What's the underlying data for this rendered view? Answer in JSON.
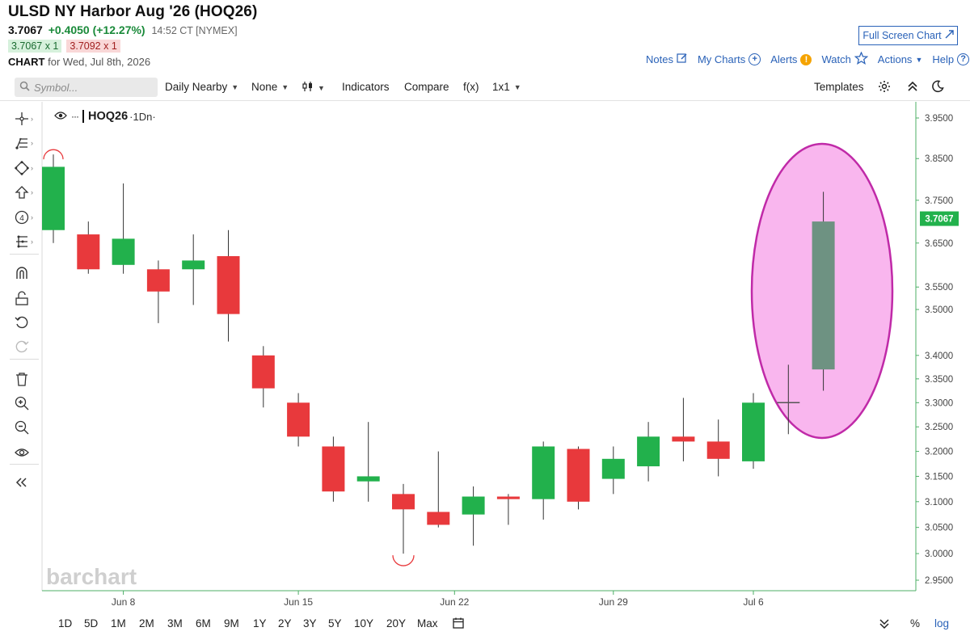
{
  "header": {
    "title": "ULSD NY Harbor Aug '26 (HOQ26)",
    "last": "3.7067",
    "change": "+0.4050 (+12.27%)",
    "time": "14:52 CT [NYMEX]",
    "bid": "3.7067 x 1",
    "ask": "3.7092 x 1",
    "chart_label": "CHART",
    "chart_date": "for Wed, Jul 8th, 2026"
  },
  "links": {
    "fullscreen": "Full Screen Chart",
    "notes": "Notes",
    "my_charts": "My Charts",
    "alerts": "Alerts",
    "watch": "Watch",
    "actions": "Actions",
    "help": "Help"
  },
  "toolbar": {
    "search_placeholder": "Symbol...",
    "aggregation": "Daily Nearby",
    "study": "None",
    "indicators": "Indicators",
    "compare": "Compare",
    "fx": "f(x)",
    "layout": "1x1",
    "templates": "Templates"
  },
  "sidebar_icons": [
    "crosshair-icon",
    "trend-line-icon",
    "shapes-icon",
    "arrow-up-icon",
    "count-icon",
    "fork-icon",
    "magnet-icon",
    "unlock-icon",
    "undo-icon",
    "redo-icon",
    "trash-icon",
    "zoom-in-icon",
    "zoom-out-icon",
    "eye-icon",
    "collapse-icon"
  ],
  "legend": {
    "symbol": "HOQ26",
    "suffix": "·1Dn·"
  },
  "watermark": "barchart",
  "periods": [
    "1D",
    "5D",
    "1M",
    "2M",
    "3M",
    "6M",
    "9M",
    "1Y",
    "2Y",
    "3Y",
    "5Y",
    "10Y",
    "20Y",
    "Max"
  ],
  "bottom": {
    "pct": "%",
    "log": "log"
  },
  "colors": {
    "up": "#22b14c",
    "down": "#e8393c",
    "accent": "#2a62b8",
    "highlight_fill": "#f9b6ee",
    "highlight_stroke": "#c02aa8",
    "highlight_candle": "#6e9282"
  },
  "chart_data": {
    "type": "candlestick",
    "scale": "log",
    "ylim": [
      2.93,
      3.98
    ],
    "y_ticks": [
      "3.9500",
      "3.8500",
      "3.7500",
      "3.6500",
      "3.5500",
      "3.5000",
      "3.4000",
      "3.3500",
      "3.3000",
      "3.2500",
      "3.2000",
      "3.1500",
      "3.1000",
      "3.0500",
      "3.0000",
      "2.9500"
    ],
    "last_price_label": "3.7067",
    "x_ticks": [
      {
        "label": "Jun 8",
        "index": 2
      },
      {
        "label": "Jun 15",
        "index": 7
      },
      {
        "label": "Jun 22",
        "index": 11
      },
      {
        "label": "Jun 29",
        "index": 16
      },
      {
        "label": "Jul 6",
        "index": 20
      }
    ],
    "candles": [
      {
        "o": 3.68,
        "h": 3.86,
        "l": 3.65,
        "c": 3.83
      },
      {
        "o": 3.67,
        "h": 3.7,
        "l": 3.58,
        "c": 3.59
      },
      {
        "o": 3.6,
        "h": 3.79,
        "l": 3.58,
        "c": 3.66
      },
      {
        "o": 3.59,
        "h": 3.61,
        "l": 3.47,
        "c": 3.54
      },
      {
        "o": 3.59,
        "h": 3.67,
        "l": 3.51,
        "c": 3.61
      },
      {
        "o": 3.62,
        "h": 3.68,
        "l": 3.43,
        "c": 3.49
      },
      {
        "o": 3.4,
        "h": 3.42,
        "l": 3.29,
        "c": 3.33
      },
      {
        "o": 3.3,
        "h": 3.32,
        "l": 3.21,
        "c": 3.23
      },
      {
        "o": 3.21,
        "h": 3.23,
        "l": 3.1,
        "c": 3.12
      },
      {
        "o": 3.14,
        "h": 3.26,
        "l": 3.1,
        "c": 3.15
      },
      {
        "o": 3.115,
        "h": 3.135,
        "l": 3.0,
        "c": 3.085
      },
      {
        "o": 3.08,
        "h": 3.2,
        "l": 3.05,
        "c": 3.055
      },
      {
        "o": 3.075,
        "h": 3.13,
        "l": 3.015,
        "c": 3.11
      },
      {
        "o": 3.11,
        "h": 3.115,
        "l": 3.055,
        "c": 3.105
      },
      {
        "o": 3.105,
        "h": 3.22,
        "l": 3.065,
        "c": 3.21
      },
      {
        "o": 3.205,
        "h": 3.21,
        "l": 3.085,
        "c": 3.1
      },
      {
        "o": 3.145,
        "h": 3.21,
        "l": 3.115,
        "c": 3.185
      },
      {
        "o": 3.17,
        "h": 3.26,
        "l": 3.14,
        "c": 3.23
      },
      {
        "o": 3.23,
        "h": 3.31,
        "l": 3.18,
        "c": 3.22
      },
      {
        "o": 3.22,
        "h": 3.265,
        "l": 3.15,
        "c": 3.185
      },
      {
        "o": 3.18,
        "h": 3.32,
        "l": 3.165,
        "c": 3.3
      },
      {
        "o": 3.3,
        "h": 3.38,
        "l": 3.235,
        "c": 3.3
      },
      {
        "o": 3.37,
        "h": 3.77,
        "l": 3.325,
        "c": 3.7
      }
    ],
    "highlighted_index": 22,
    "swing_markers": [
      {
        "index": 0,
        "position": "high"
      },
      {
        "index": 10,
        "position": "low"
      }
    ]
  }
}
